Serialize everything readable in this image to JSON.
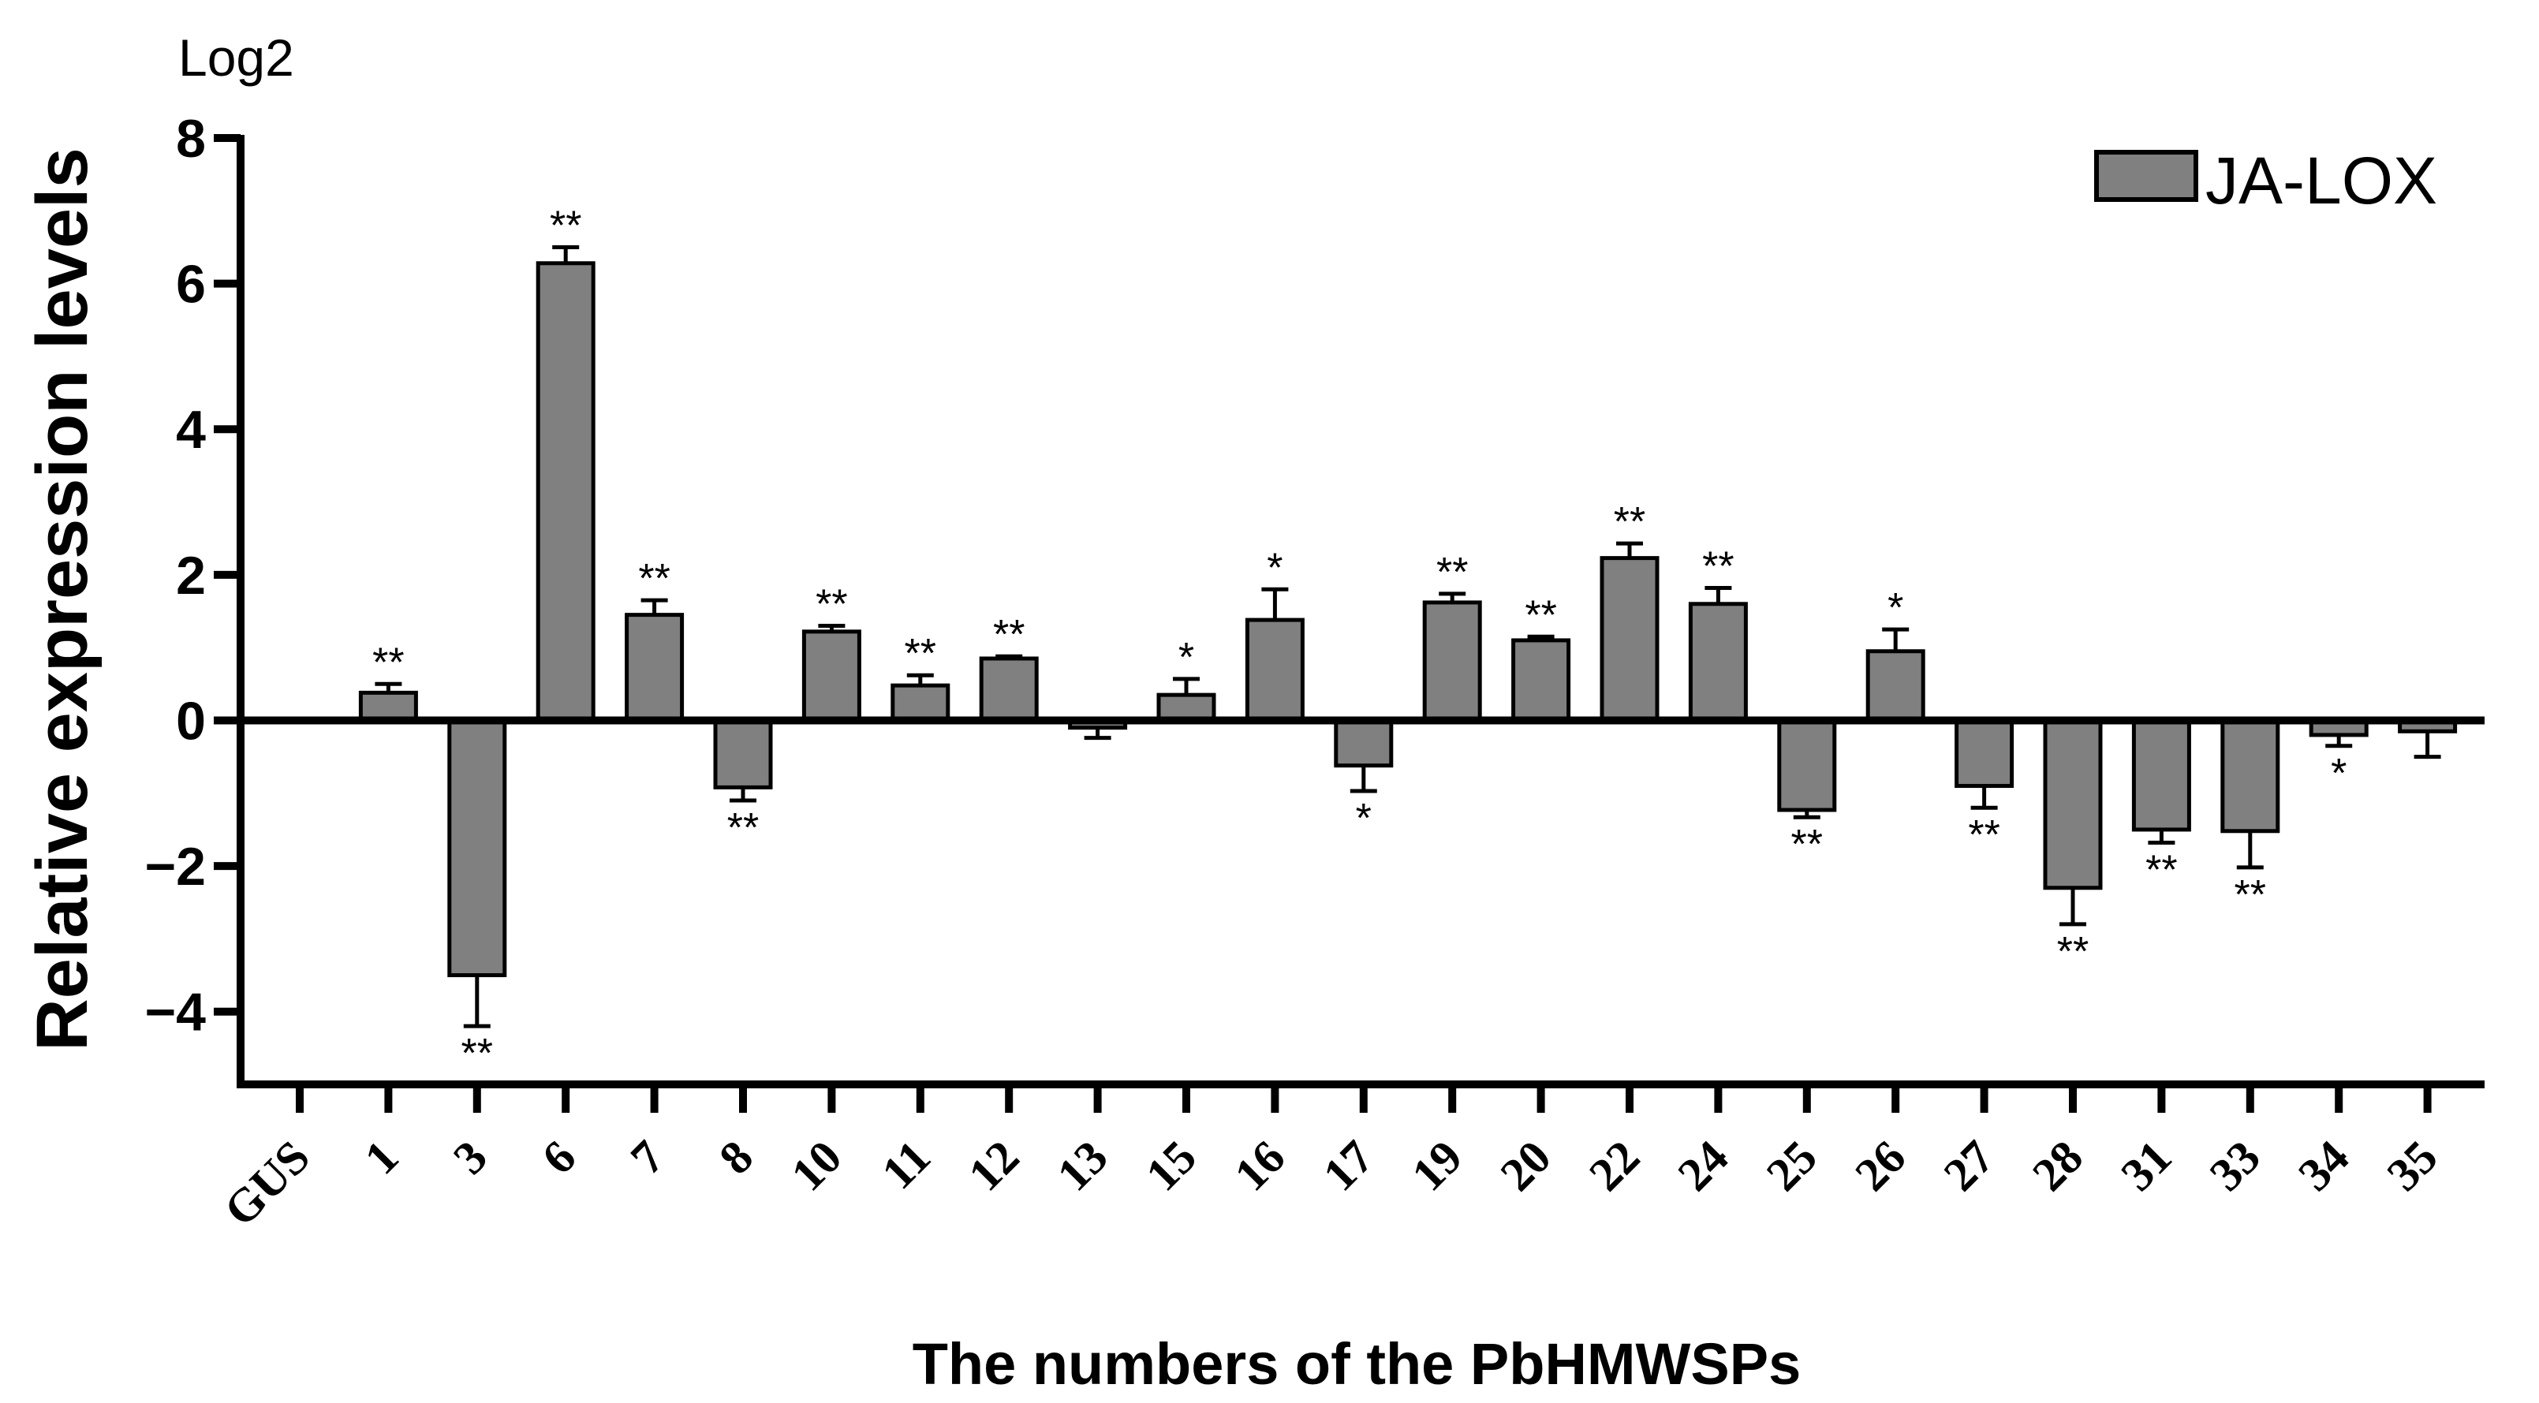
{
  "chart_data": {
    "type": "bar",
    "unit_label": "Log2",
    "ylabel": "Relative expression levels",
    "xlabel": "The numbers of the PbHMWSPs",
    "ylim": [
      -5,
      8
    ],
    "yticks": [
      -4,
      -2,
      0,
      2,
      4,
      6,
      8
    ],
    "ytick_labels": [
      "−4",
      "−2",
      "0",
      "2",
      "4",
      "6",
      "8"
    ],
    "legend_position": "top-right",
    "bar_color": "#808080",
    "categories": [
      "GUS",
      "1",
      "3",
      "6",
      "7",
      "8",
      "10",
      "11",
      "12",
      "13",
      "15",
      "16",
      "17",
      "19",
      "20",
      "22",
      "24",
      "25",
      "26",
      "27",
      "28",
      "31",
      "33",
      "34",
      "35"
    ],
    "series": [
      {
        "name": "JA-LOX",
        "values": [
          0.0,
          0.38,
          -3.5,
          6.28,
          1.45,
          -0.92,
          1.22,
          0.48,
          0.85,
          -0.1,
          0.35,
          1.38,
          -0.62,
          1.62,
          1.1,
          2.23,
          1.6,
          -1.23,
          0.95,
          -0.9,
          -2.3,
          -1.5,
          -1.52,
          -0.2,
          -0.15
        ],
        "errors": [
          0.0,
          0.12,
          0.7,
          0.22,
          0.2,
          0.18,
          0.08,
          0.14,
          0.03,
          0.14,
          0.22,
          0.42,
          0.35,
          0.12,
          0.05,
          0.2,
          0.22,
          0.1,
          0.3,
          0.3,
          0.5,
          0.18,
          0.5,
          0.15,
          0.35
        ],
        "significance": [
          "",
          "**",
          "**",
          "**",
          "**",
          "**",
          "**",
          "**",
          "**",
          "",
          "*",
          "*",
          "*",
          "**",
          "**",
          "**",
          "**",
          "**",
          "*",
          "**",
          "**",
          "**",
          "**",
          "*",
          ""
        ]
      }
    ]
  }
}
